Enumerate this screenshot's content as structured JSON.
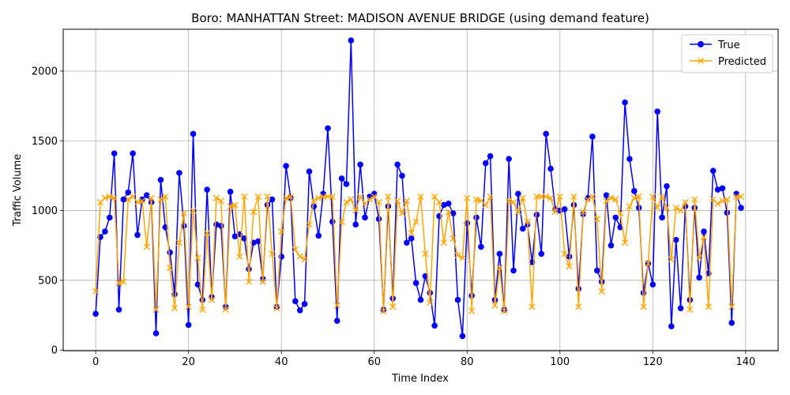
{
  "chart_data": {
    "type": "line",
    "title": "Boro: MANHATTAN Street: MADISON AVENUE BRIDGE (using demand feature)",
    "xlabel": "Time Index",
    "ylabel": "Traffic Volume",
    "xlim": [
      -7,
      147
    ],
    "ylim": [
      -5,
      2300
    ],
    "xticks": [
      0,
      20,
      40,
      60,
      80,
      100,
      120,
      140
    ],
    "yticks": [
      0,
      500,
      1000,
      1500,
      2000
    ],
    "grid": true,
    "legend_position": "top-right",
    "series": [
      {
        "name": "True",
        "color": "#0000ff",
        "marker": "circle",
        "values": [
          260,
          810,
          850,
          950,
          1410,
          290,
          1080,
          1130,
          1410,
          825,
          1080,
          1110,
          1060,
          120,
          1220,
          880,
          700,
          400,
          1270,
          890,
          180,
          1550,
          470,
          360,
          1150,
          380,
          900,
          890,
          310,
          1135,
          815,
          830,
          800,
          580,
          770,
          780,
          510,
          1040,
          1080,
          310,
          670,
          1320,
          1090,
          350,
          285,
          330,
          1280,
          1030,
          820,
          1120,
          1590,
          920,
          210,
          1230,
          1190,
          2220,
          900,
          1330,
          950,
          1100,
          1120,
          940,
          290,
          1030,
          370,
          1330,
          1250,
          770,
          800,
          480,
          360,
          530,
          410,
          175,
          960,
          1040,
          1050,
          980,
          360,
          100,
          910,
          390,
          950,
          740,
          1340,
          1390,
          360,
          690,
          290,
          1370,
          570,
          1120,
          870,
          900,
          630,
          970,
          690,
          1550,
          1300,
          1010,
          1000,
          1010,
          670,
          1040,
          440,
          975,
          1090,
          1530,
          570,
          490,
          1110,
          750,
          950,
          880,
          1775,
          1370,
          1140,
          1020,
          410,
          620,
          470,
          1710,
          950,
          1175,
          170,
          790,
          300,
          1030,
          360,
          1020,
          520,
          850,
          550,
          1285,
          1150,
          1160,
          985,
          195,
          1120,
          1020
        ]
      },
      {
        "name": "Predicted",
        "color": "#ffa500",
        "marker": "x",
        "values": [
          420,
          1060,
          1090,
          1100,
          1090,
          480,
          490,
          1080,
          1100,
          1060,
          1070,
          740,
          1090,
          290,
          1080,
          1100,
          590,
          300,
          770,
          980,
          310,
          1000,
          660,
          290,
          840,
          360,
          1090,
          1070,
          290,
          1030,
          1040,
          670,
          1100,
          490,
          990,
          1100,
          490,
          1100,
          690,
          300,
          850,
          1090,
          1100,
          720,
          670,
          650,
          900,
          1070,
          1090,
          1100,
          1100,
          1100,
          320,
          920,
          1060,
          1080,
          1000,
          1100,
          1050,
          1080,
          1100,
          1060,
          280,
          1100,
          310,
          1070,
          980,
          1070,
          840,
          920,
          1100,
          690,
          340,
          1100,
          1060,
          770,
          990,
          800,
          680,
          660,
          1090,
          280,
          1080,
          1070,
          1040,
          1100,
          320,
          590,
          280,
          1070,
          1060,
          990,
          1090,
          920,
          310,
          1100,
          1100,
          1100,
          1090,
          990,
          1100,
          690,
          600,
          1100,
          310,
          990,
          1080,
          1100,
          940,
          420,
          1070,
          1090,
          1080,
          980,
          770,
          1030,
          1090,
          1100,
          310,
          620,
          1100,
          1020,
          1100,
          1020,
          650,
          1020,
          1000,
          1060,
          290,
          1080,
          660,
          810,
          310,
          1080,
          1050,
          1070,
          1080,
          310,
          1100,
          1100
        ]
      }
    ]
  }
}
